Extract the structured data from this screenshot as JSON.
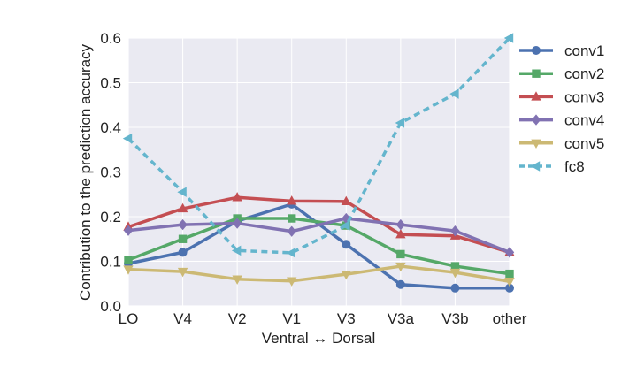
{
  "chart_data": {
    "type": "line",
    "title": "",
    "xlabel": "Ventral ↔ Dorsal",
    "ylabel": "Contribution to the prediction accuracy",
    "categories": [
      "LO",
      "V4",
      "V2",
      "V1",
      "V3",
      "V3a",
      "V3b",
      "other"
    ],
    "ylim": [
      0.0,
      0.6
    ],
    "yticks": [
      "0.0",
      "0.1",
      "0.2",
      "0.3",
      "0.4",
      "0.5",
      "0.6"
    ],
    "grid": true,
    "legend_position": "right, outside plot",
    "series": [
      {
        "name": "conv1",
        "color": "#4c72b0",
        "marker": "circle",
        "dashed": false,
        "values": [
          0.095,
          0.12,
          0.19,
          0.228,
          0.138,
          0.048,
          0.04,
          0.04
        ]
      },
      {
        "name": "conv2",
        "color": "#55a868",
        "marker": "square",
        "dashed": false,
        "values": [
          0.103,
          0.15,
          0.196,
          0.196,
          0.18,
          0.116,
          0.089,
          0.072
        ]
      },
      {
        "name": "conv3",
        "color": "#c44e52",
        "marker": "triangle-up",
        "dashed": false,
        "values": [
          0.177,
          0.218,
          0.243,
          0.235,
          0.234,
          0.16,
          0.157,
          0.12
        ]
      },
      {
        "name": "conv4",
        "color": "#8172b2",
        "marker": "diamond",
        "dashed": false,
        "values": [
          0.169,
          0.182,
          0.185,
          0.167,
          0.196,
          0.182,
          0.168,
          0.12
        ]
      },
      {
        "name": "conv5",
        "color": "#ccb974",
        "marker": "triangle-down",
        "dashed": false,
        "values": [
          0.082,
          0.077,
          0.06,
          0.056,
          0.071,
          0.089,
          0.075,
          0.055
        ]
      },
      {
        "name": "fc8",
        "color": "#64b5cd",
        "marker": "triangle-left",
        "dashed": true,
        "values": [
          0.375,
          0.255,
          0.124,
          0.119,
          0.18,
          0.41,
          0.475,
          0.6
        ]
      }
    ]
  }
}
